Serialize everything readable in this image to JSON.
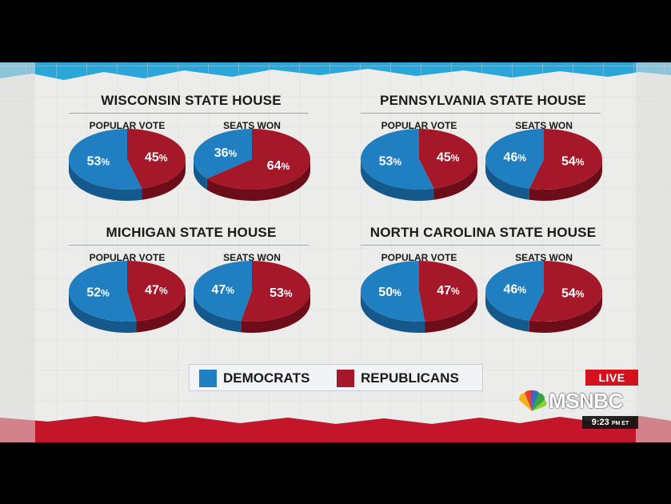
{
  "chart_data": [
    {
      "type": "pie",
      "title": "WISCONSIN STATE HOUSE",
      "charts": [
        {
          "label": "POPULAR VOTE",
          "slices": [
            {
              "name": "DEMOCRATS",
              "value": 53,
              "text": "53%"
            },
            {
              "name": "REPUBLICANS",
              "value": 45,
              "text": "45%"
            }
          ]
        },
        {
          "label": "SEATS WON",
          "slices": [
            {
              "name": "DEMOCRATS",
              "value": 36,
              "text": "36%"
            },
            {
              "name": "REPUBLICANS",
              "value": 64,
              "text": "64%"
            }
          ]
        }
      ]
    },
    {
      "type": "pie",
      "title": "PENNSYLVANIA STATE HOUSE",
      "charts": [
        {
          "label": "POPULAR VOTE",
          "slices": [
            {
              "name": "DEMOCRATS",
              "value": 53,
              "text": "53%"
            },
            {
              "name": "REPUBLICANS",
              "value": 45,
              "text": "45%"
            }
          ]
        },
        {
          "label": "SEATS WON",
          "slices": [
            {
              "name": "DEMOCRATS",
              "value": 46,
              "text": "46%"
            },
            {
              "name": "REPUBLICANS",
              "value": 54,
              "text": "54%"
            }
          ]
        }
      ]
    },
    {
      "type": "pie",
      "title": "MICHIGAN STATE HOUSE",
      "charts": [
        {
          "label": "POPULAR VOTE",
          "slices": [
            {
              "name": "DEMOCRATS",
              "value": 52,
              "text": "52%"
            },
            {
              "name": "REPUBLICANS",
              "value": 47,
              "text": "47%"
            }
          ]
        },
        {
          "label": "SEATS WON",
          "slices": [
            {
              "name": "DEMOCRATS",
              "value": 47,
              "text": "47%"
            },
            {
              "name": "REPUBLICANS",
              "value": 53,
              "text": "53%"
            }
          ]
        }
      ]
    },
    {
      "type": "pie",
      "title": "NORTH CAROLINA STATE HOUSE",
      "charts": [
        {
          "label": "POPULAR VOTE",
          "slices": [
            {
              "name": "DEMOCRATS",
              "value": 50,
              "text": "50%"
            },
            {
              "name": "REPUBLICANS",
              "value": 47,
              "text": "47%"
            }
          ]
        },
        {
          "label": "SEATS WON",
          "slices": [
            {
              "name": "DEMOCRATS",
              "value": 46,
              "text": "46%"
            },
            {
              "name": "REPUBLICANS",
              "value": 54,
              "text": "54%"
            }
          ]
        }
      ]
    }
  ],
  "legend": {
    "placement": "bottom-center",
    "items": [
      {
        "name": "DEMOCRATS",
        "color": "#1f7fc1"
      },
      {
        "name": "REPUBLICANS",
        "color": "#a5182a"
      }
    ]
  },
  "colors": {
    "dem_top": "#1f7fc1",
    "dem_side": "#15598c",
    "rep_top": "#a5182a",
    "rep_side": "#6e0d1a"
  },
  "broadcast": {
    "live_label": "LIVE",
    "network": "MSNBC",
    "network_icon": "peacock-icon",
    "time": "9:23",
    "time_suffix": "PM ET"
  }
}
